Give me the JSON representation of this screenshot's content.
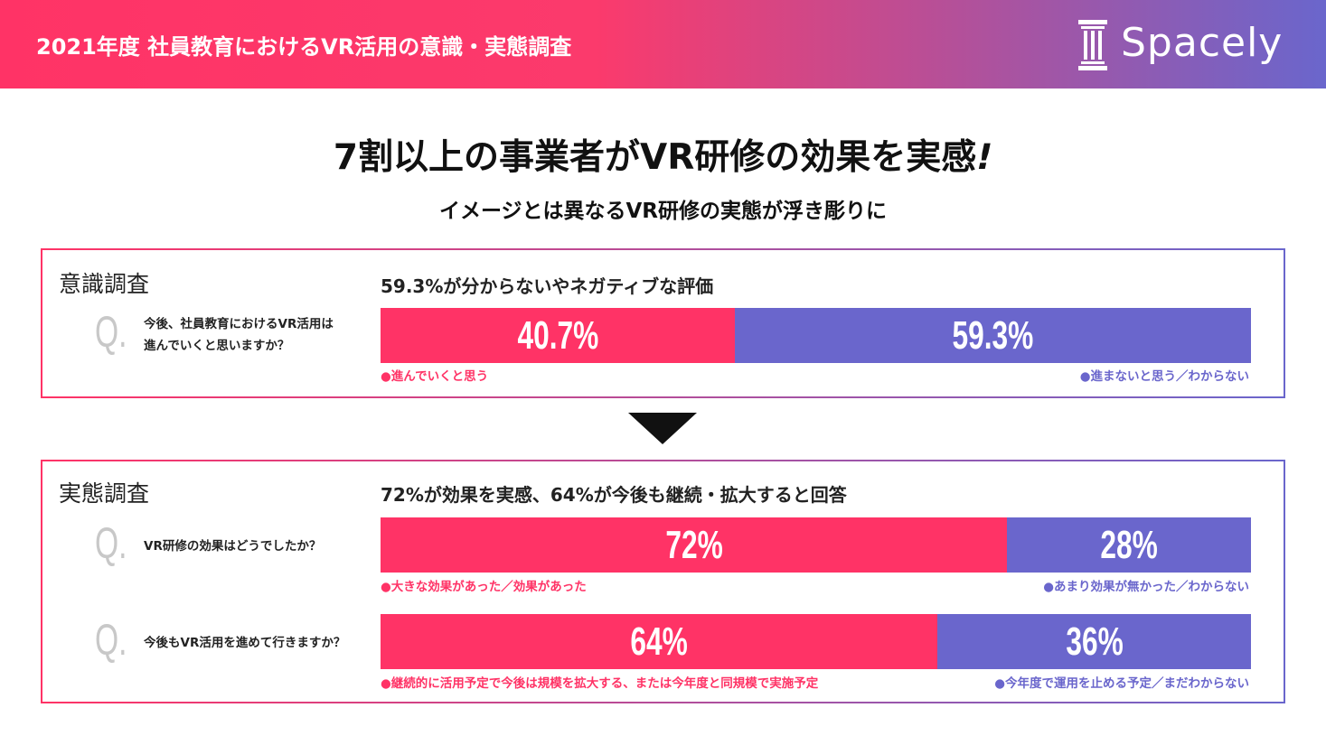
{
  "header": {
    "title": "2021年度 社員教育におけるVR活用の意識・実態調査",
    "logo_text": "Spacely",
    "logo_icon": "pillar-icon",
    "gradient": [
      "#ff3366",
      "#6a66cc"
    ]
  },
  "main_title": "7割以上の事業者がVR研修の効果を実感",
  "main_title_mark": "!",
  "subtitle": "イメージとは異なるVR研修の実態が浮き彫りに",
  "colors": {
    "positive": "#ff3366",
    "negative": "#6a66cc"
  },
  "chart_data": [
    {
      "type": "bar",
      "stacked": true,
      "orientation": "horizontal",
      "panel_label": "意識調査",
      "title": "59.3%が分からないやネガティブな評価",
      "question_mark": "Q.",
      "question": "今後、社員教育におけるVR活用は\n進んでいくと思いますか？",
      "series": [
        {
          "name": "●進んでいくと思う",
          "value": 40.7,
          "label": "40.7%",
          "color": "#ff3366"
        },
        {
          "name": "●進まないと思う／わからない",
          "value": 59.3,
          "label": "59.3%",
          "color": "#6a66cc"
        }
      ]
    },
    {
      "type": "bar",
      "stacked": true,
      "orientation": "horizontal",
      "panel_label": "実態調査",
      "title": "72%が効果を実感、64%が今後も継続・拡大すると回答",
      "question_mark": "Q.",
      "question": "VR研修の効果はどうでしたか？",
      "series": [
        {
          "name": "●大きな効果があった／効果があった",
          "value": 72,
          "label": "72%",
          "color": "#ff3366"
        },
        {
          "name": "●あまり効果が無かった／わからない",
          "value": 28,
          "label": "28%",
          "color": "#6a66cc"
        }
      ]
    },
    {
      "type": "bar",
      "stacked": true,
      "orientation": "horizontal",
      "question_mark": "Q.",
      "question": "今後もVR活用を進めて行きますか？",
      "series": [
        {
          "name": "●継続的に活用予定で今後は規模を拡大する、または今年度と同規模で実施予定",
          "value": 64,
          "label": "64%",
          "color": "#ff3366"
        },
        {
          "name": "●今年度で運用を止める予定／まだわからない",
          "value": 36,
          "label": "36%",
          "color": "#6a66cc"
        }
      ]
    }
  ],
  "arrow_icon": "down-triangle-icon"
}
